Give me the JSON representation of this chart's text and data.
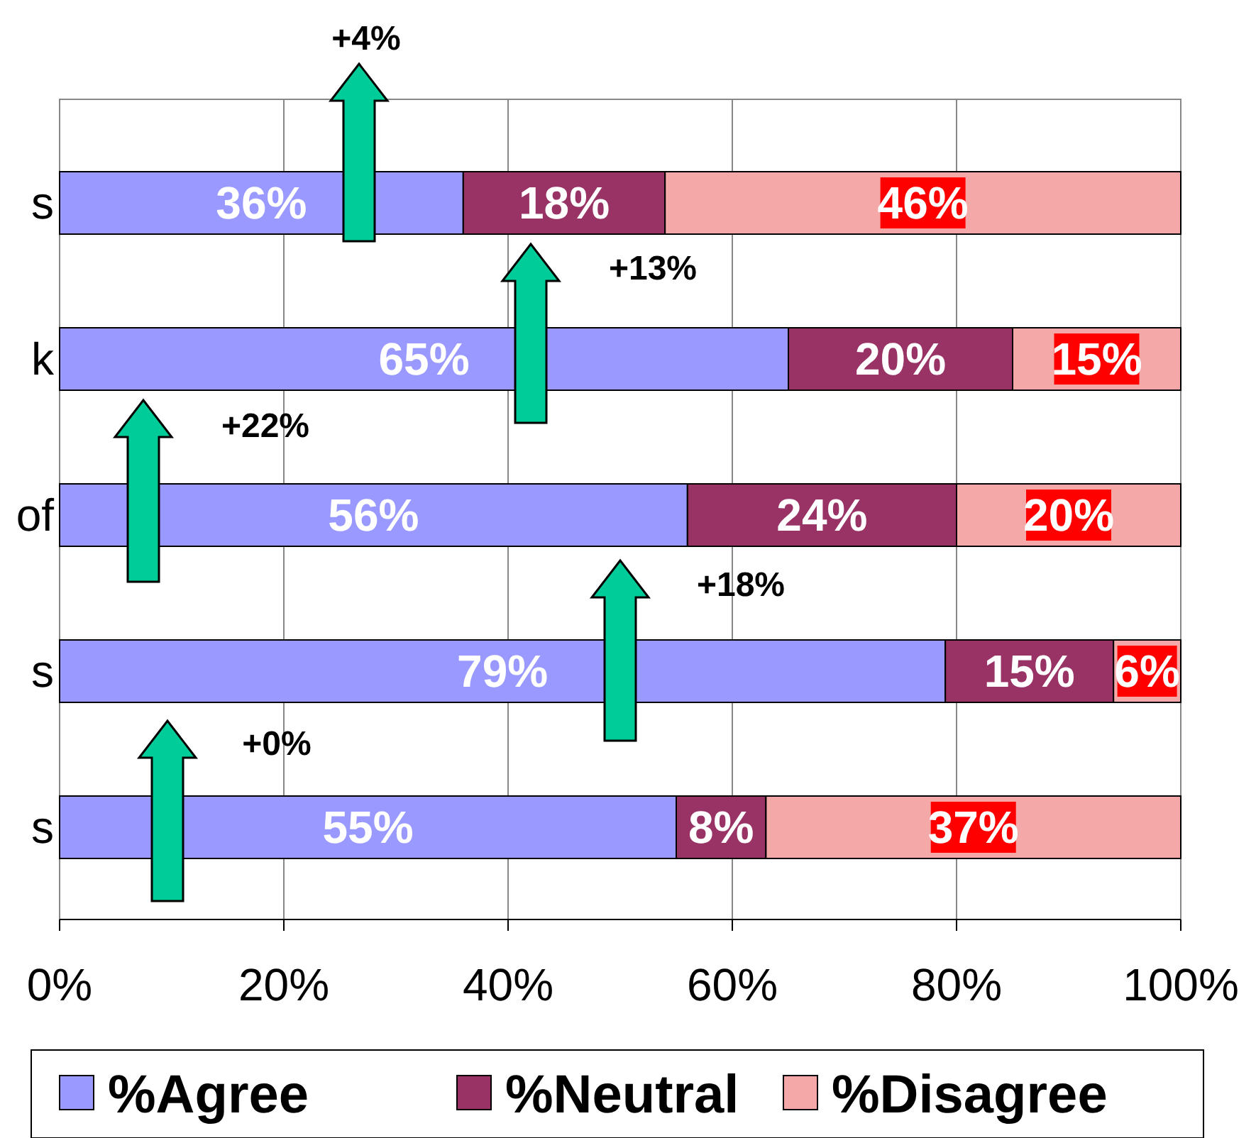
{
  "chart_data": {
    "type": "bar",
    "orientation": "horizontal",
    "stacked": true,
    "categories": [
      "s",
      "k",
      "of",
      "s",
      "s"
    ],
    "series": [
      {
        "name": "%Agree",
        "color": "#9999ff",
        "values": [
          36,
          65,
          56,
          79,
          55
        ],
        "value_labels": [
          "36%",
          "65%",
          "56%",
          "79%",
          "55%"
        ]
      },
      {
        "name": "%Neutral",
        "color": "#993366",
        "values": [
          18,
          20,
          24,
          15,
          8
        ],
        "value_labels": [
          "18%",
          "20%",
          "24%",
          "15%",
          "8%"
        ]
      },
      {
        "name": "%Disagree",
        "color": "#f4a8a8",
        "values": [
          46,
          15,
          20,
          6,
          37
        ],
        "value_labels": [
          "46%",
          "15%",
          "20%",
          "6%",
          "37%"
        ]
      }
    ],
    "xlim": [
      0,
      100
    ],
    "xticks": [
      {
        "value": 0,
        "label": "0%"
      },
      {
        "value": 20,
        "label": "20%"
      },
      {
        "value": 40,
        "label": "40%"
      },
      {
        "value": 60,
        "label": "60%"
      },
      {
        "value": 80,
        "label": "80%"
      },
      {
        "value": 100,
        "label": "100%"
      }
    ],
    "grid": "x",
    "legend": "bottom",
    "annotations": [
      "+4%",
      "+13%",
      "+22%",
      "+18%",
      "+0%"
    ]
  }
}
